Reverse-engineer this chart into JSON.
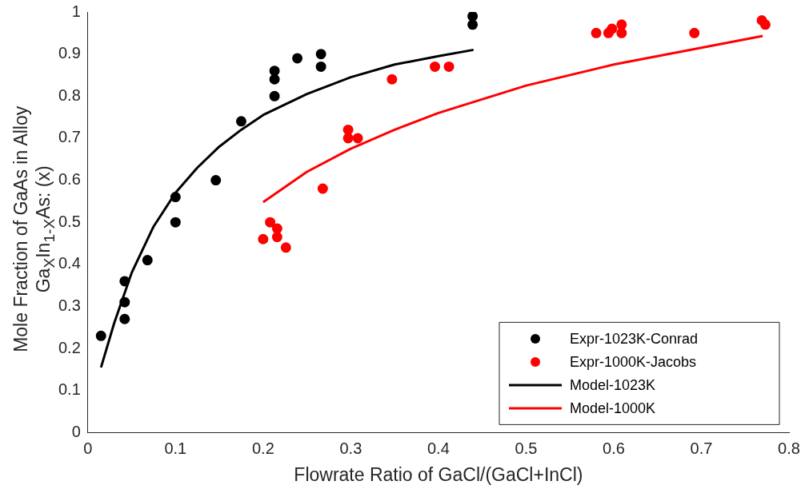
{
  "chart_data": {
    "type": "scatter",
    "xlabel": "Flowrate Ratio of GaCl/(GaCl+InCl)",
    "ylabel": "Mole Fraction of GaAs in Alloy\nGa$_{X}$In$_{1-X}$As: (x)",
    "xlim": [
      0,
      0.8
    ],
    "xticks": [
      0,
      0.1,
      0.2,
      0.3,
      0.4,
      0.5,
      0.6,
      0.7,
      0.8
    ],
    "ylim": [
      0,
      1
    ],
    "yticks": [
      0,
      0.1,
      0.2,
      0.3,
      0.4,
      0.5,
      0.6,
      0.7,
      0.8,
      0.9,
      1
    ],
    "grid": false,
    "legend": "bottom right",
    "marker": "circle",
    "series": [
      {
        "name": "Expr-1023K-Conrad",
        "type": "scatter",
        "color": "#000000",
        "x": [
          0.015,
          0.042,
          0.042,
          0.042,
          0.068,
          0.1,
          0.1,
          0.146,
          0.175,
          0.213,
          0.213,
          0.213,
          0.239,
          0.266,
          0.266,
          0.439,
          0.439
        ],
        "values": [
          0.23,
          0.36,
          0.31,
          0.27,
          0.41,
          0.56,
          0.5,
          0.6,
          0.74,
          0.86,
          0.84,
          0.8,
          0.89,
          0.9,
          0.87,
          0.99,
          0.97
        ]
      },
      {
        "name": "Expr-1000K-Jacobs",
        "type": "scatter",
        "color": "#ff0000",
        "x": [
          0.2,
          0.208,
          0.216,
          0.216,
          0.226,
          0.268,
          0.297,
          0.297,
          0.308,
          0.347,
          0.396,
          0.412,
          0.58,
          0.594,
          0.598,
          0.609,
          0.609,
          0.692,
          0.769,
          0.773
        ],
        "values": [
          0.46,
          0.5,
          0.485,
          0.465,
          0.44,
          0.58,
          0.72,
          0.7,
          0.7,
          0.84,
          0.87,
          0.87,
          0.95,
          0.95,
          0.96,
          0.97,
          0.95,
          0.95,
          0.98,
          0.97
        ]
      },
      {
        "name": "Model-1023K",
        "type": "line",
        "color": "#000000",
        "marker": "none",
        "x": [
          0.015,
          0.03,
          0.05,
          0.075,
          0.1,
          0.125,
          0.15,
          0.175,
          0.2,
          0.25,
          0.3,
          0.35,
          0.4,
          0.44
        ],
        "values": [
          0.155,
          0.26,
          0.38,
          0.49,
          0.57,
          0.63,
          0.68,
          0.72,
          0.755,
          0.805,
          0.845,
          0.875,
          0.895,
          0.91
        ]
      },
      {
        "name": "Model-1000K",
        "type": "line",
        "color": "#ff0000",
        "marker": "none",
        "x": [
          0.2,
          0.25,
          0.3,
          0.35,
          0.4,
          0.5,
          0.6,
          0.7,
          0.77
        ],
        "values": [
          0.548,
          0.62,
          0.675,
          0.72,
          0.76,
          0.825,
          0.875,
          0.915,
          0.943
        ]
      }
    ]
  }
}
